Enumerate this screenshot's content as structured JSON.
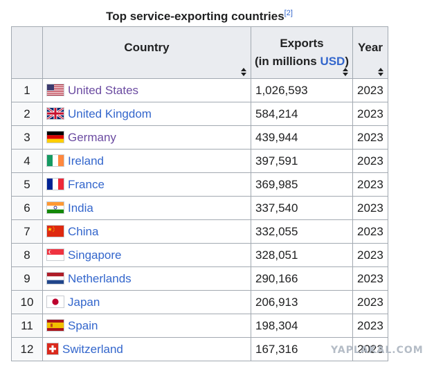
{
  "caption": {
    "title": "Top service-exporting countries",
    "ref": "[2]"
  },
  "columns": {
    "country": "Country",
    "exports_line1": "Exports",
    "exports_line2_prefix": "(in millions ",
    "exports_usd": "USD",
    "exports_line2_suffix": ")",
    "year": "Year"
  },
  "rows": [
    {
      "rank": "1",
      "country": "United States",
      "exports": "1,026,593",
      "year": "2023",
      "flag": "us-flag"
    },
    {
      "rank": "2",
      "country": "United Kingdom",
      "exports": "584,214",
      "year": "2023",
      "flag": "uk-flag"
    },
    {
      "rank": "3",
      "country": "Germany",
      "exports": "439,944",
      "year": "2023",
      "flag": "germany-flag"
    },
    {
      "rank": "4",
      "country": "Ireland",
      "exports": "397,591",
      "year": "2023",
      "flag": "ireland-flag"
    },
    {
      "rank": "5",
      "country": "France",
      "exports": "369,985",
      "year": "2023",
      "flag": "france-flag"
    },
    {
      "rank": "6",
      "country": "India",
      "exports": "337,540",
      "year": "2023",
      "flag": "india-flag"
    },
    {
      "rank": "7",
      "country": "China",
      "exports": "332,055",
      "year": "2023",
      "flag": "china-flag"
    },
    {
      "rank": "8",
      "country": "Singapore",
      "exports": "328,051",
      "year": "2023",
      "flag": "singapore-flag"
    },
    {
      "rank": "9",
      "country": "Netherlands",
      "exports": "290,166",
      "year": "2023",
      "flag": "netherlands-flag"
    },
    {
      "rank": "10",
      "country": "Japan",
      "exports": "206,913",
      "year": "2023",
      "flag": "japan-flag"
    },
    {
      "rank": "11",
      "country": "Spain",
      "exports": "198,304",
      "year": "2023",
      "flag": "spain-flag"
    },
    {
      "rank": "12",
      "country": "Switzerland",
      "exports": "167,316",
      "year": "2023",
      "flag": "switzerland-flag"
    }
  ],
  "watermark": "YAPLAKAL.COM",
  "colors": {
    "link": "#3366cc",
    "visited": "#6b4ba1",
    "header_bg": "#eaecf0",
    "border": "#a2a9b1"
  }
}
